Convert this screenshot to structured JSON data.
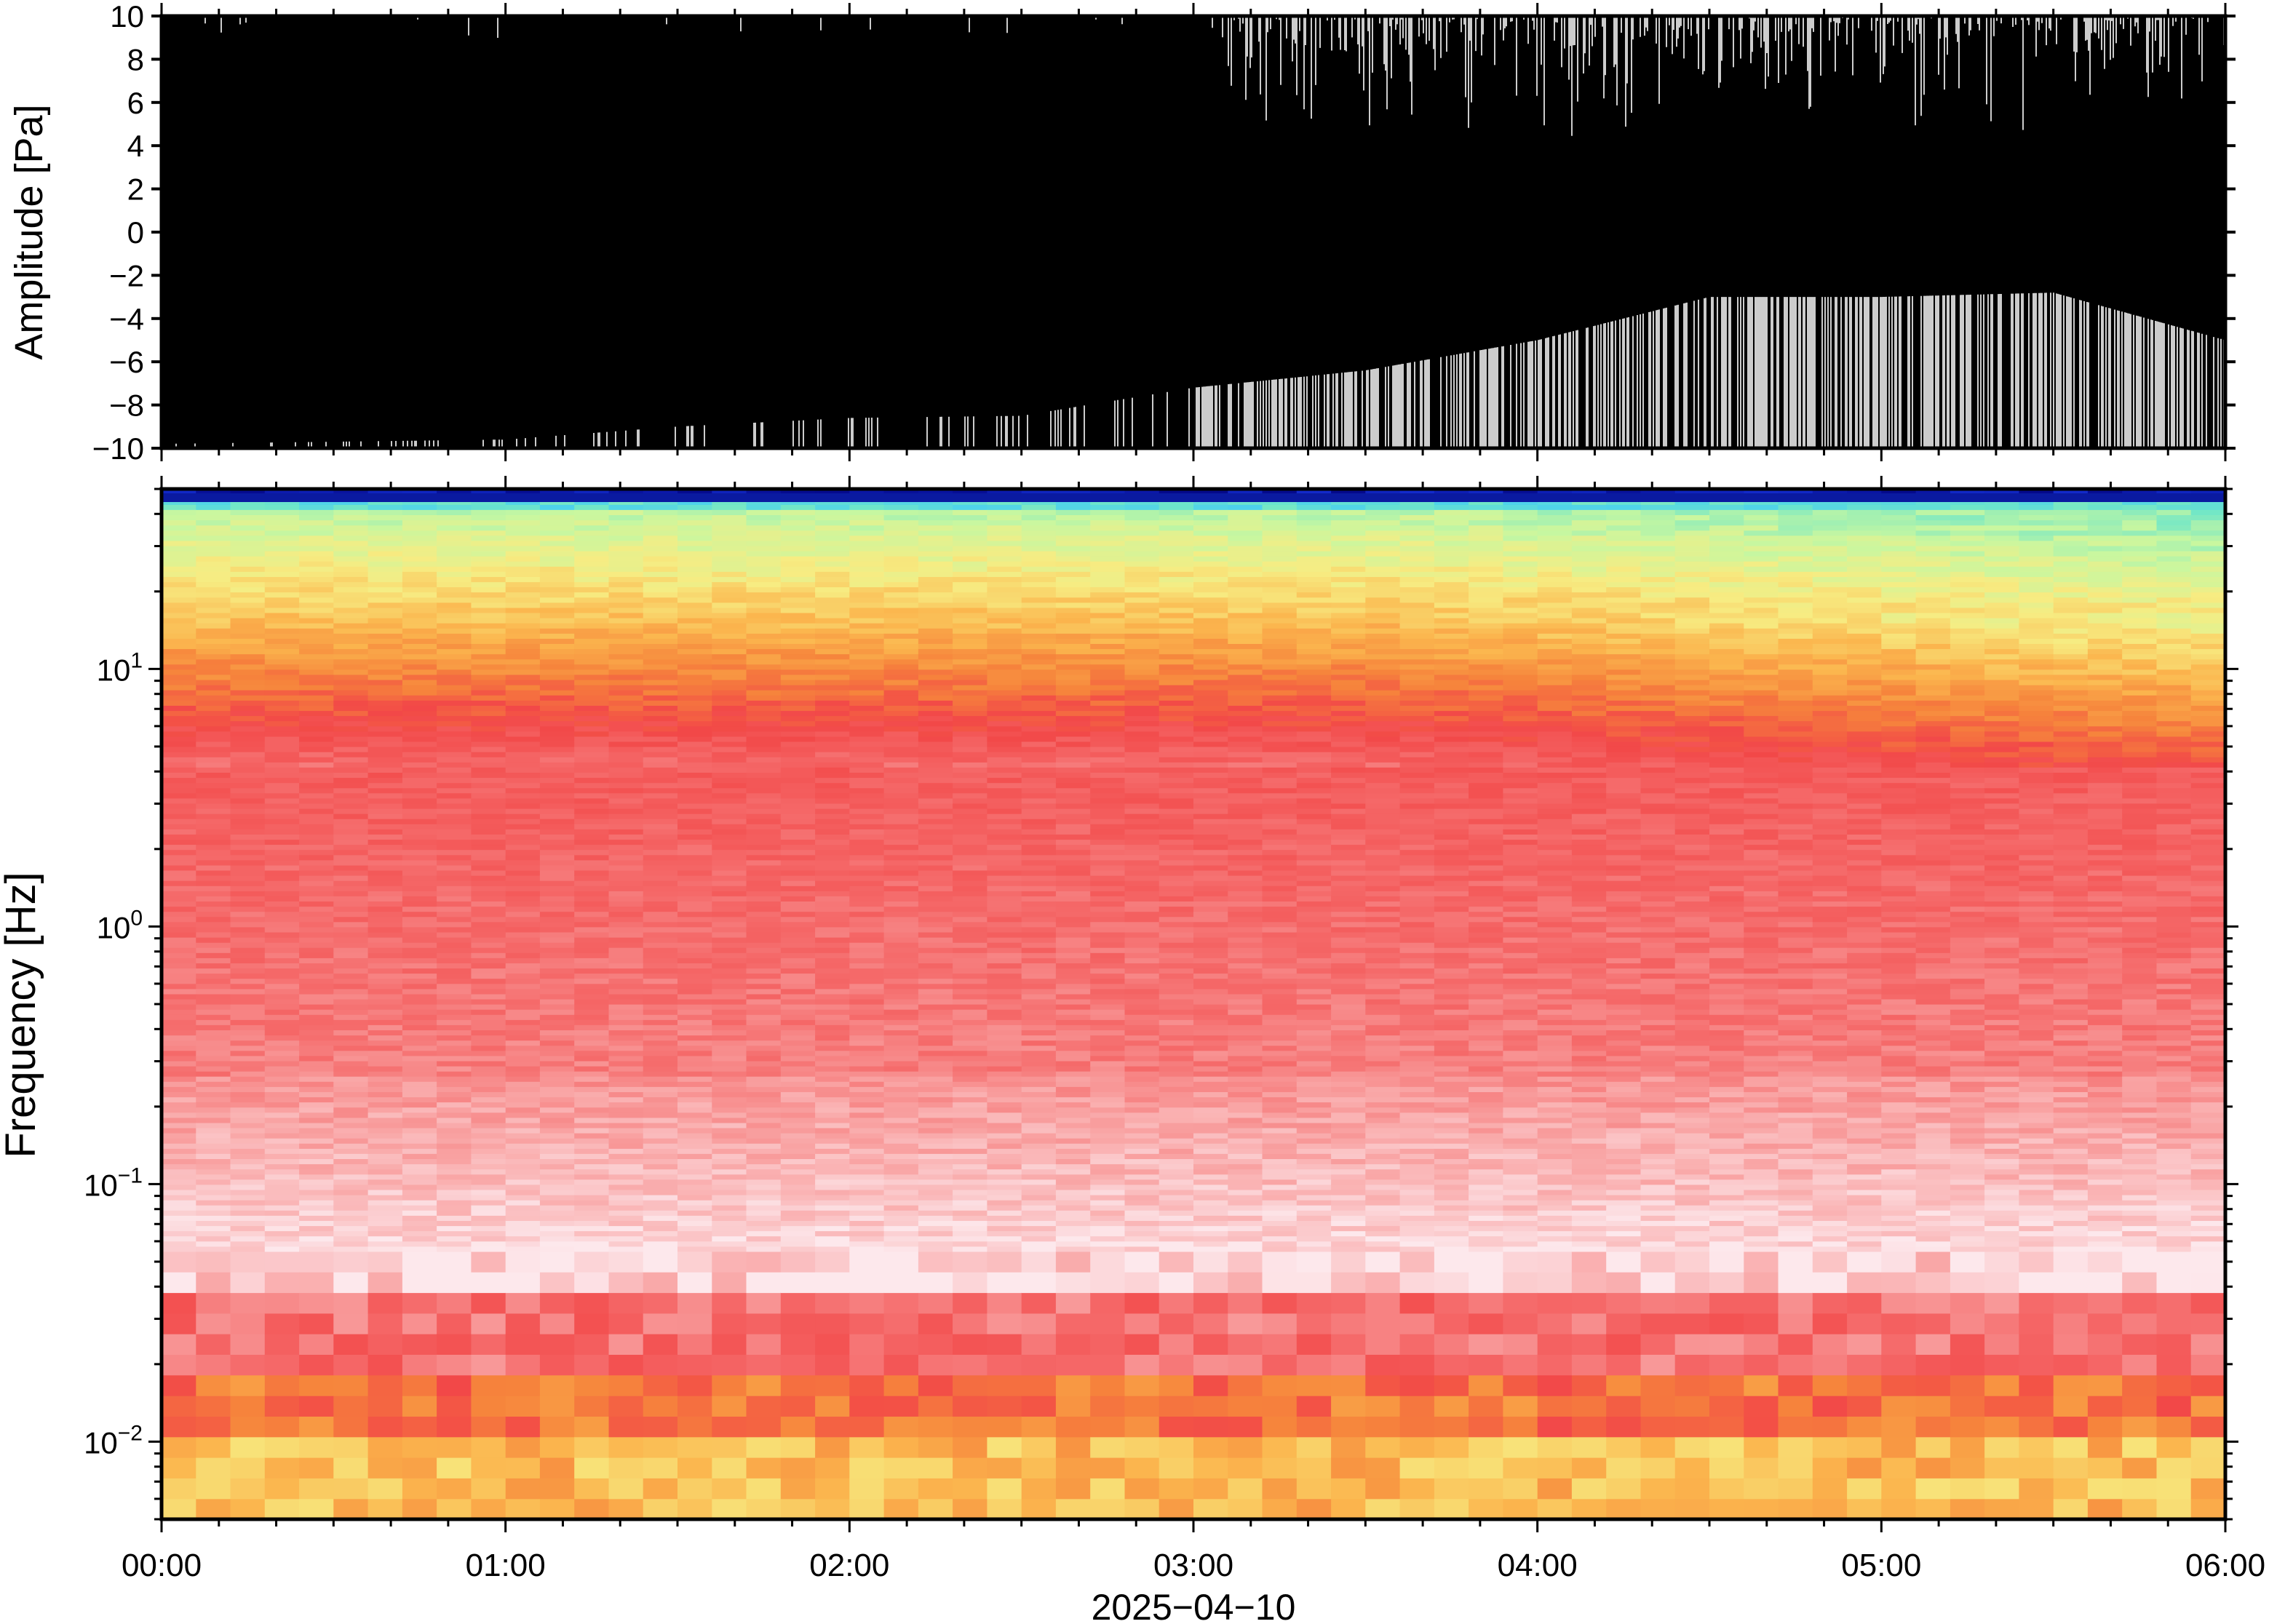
{
  "chart_data": [
    {
      "type": "line",
      "panel": "waveform",
      "ylabel": "Amplitude [Pa]",
      "ylim": [
        -10,
        10
      ],
      "yticks": [
        "10",
        "8",
        "6",
        "4",
        "2",
        "0",
        "−2",
        "−4",
        "−6",
        "−8",
        "−10"
      ],
      "ytick_values": [
        10,
        8,
        6,
        4,
        2,
        0,
        -2,
        -4,
        -6,
        -8,
        -10
      ],
      "xlim": [
        "00:00",
        "06:00"
      ],
      "color": "#000000",
      "series": [
        {
          "x_hours": [
            0,
            0.5,
            1,
            1.5,
            2,
            2.5,
            3,
            3.5,
            4,
            4.5,
            5,
            5.5,
            6
          ],
          "upper_envelope": [
            10,
            10,
            10,
            10,
            10,
            10,
            10,
            10,
            10,
            10,
            10,
            10,
            10
          ],
          "lower_envelope_min": [
            -9.8,
            -9.7,
            -9.6,
            -9.0,
            -8.6,
            -8.5,
            -7.2,
            -6.4,
            -5.0,
            -3.0,
            -3.0,
            -2.8,
            -5.0
          ]
        }
      ],
      "note_clipped_top_from_hour": 3.1
    },
    {
      "type": "heatmap",
      "panel": "spectrogram",
      "ylabel": "Frequency [Hz]",
      "yscale": "log",
      "ylim": [
        0.005,
        50
      ],
      "ytick_labels": [
        {
          "base": "10",
          "exp": "1",
          "value": 10
        },
        {
          "base": "10",
          "exp": "0",
          "value": 1
        },
        {
          "base": "10",
          "exp": "−1",
          "value": 0.1
        },
        {
          "base": "10",
          "exp": "−2",
          "value": 0.01
        }
      ],
      "xlabel": "2025−04−10",
      "x": [
        "00:00",
        "01:00",
        "02:00",
        "03:00",
        "04:00",
        "05:00",
        "06:00"
      ],
      "colormap": [
        "#00007a",
        "#1530d6",
        "#39c6ff",
        "#6fe6c8",
        "#c8f7a0",
        "#f7ec82",
        "#fbb64e",
        "#f6843c",
        "#f24848",
        "#f56b6b",
        "#f9a6a6",
        "#fde8ec"
      ],
      "bands_description_points": [
        {
          "freq_hz": 48,
          "level": "min"
        },
        {
          "freq_hz": 30,
          "level": "low"
        },
        {
          "freq_hz": 15,
          "level": "mid"
        },
        {
          "freq_hz": 5,
          "level": "high"
        },
        {
          "freq_hz": 0.3,
          "level": "moderate"
        },
        {
          "freq_hz": 0.06,
          "level": "lowest-pink"
        },
        {
          "freq_hz": 0.02,
          "level": "high"
        },
        {
          "freq_hz": 0.007,
          "level": "mid"
        }
      ]
    }
  ]
}
